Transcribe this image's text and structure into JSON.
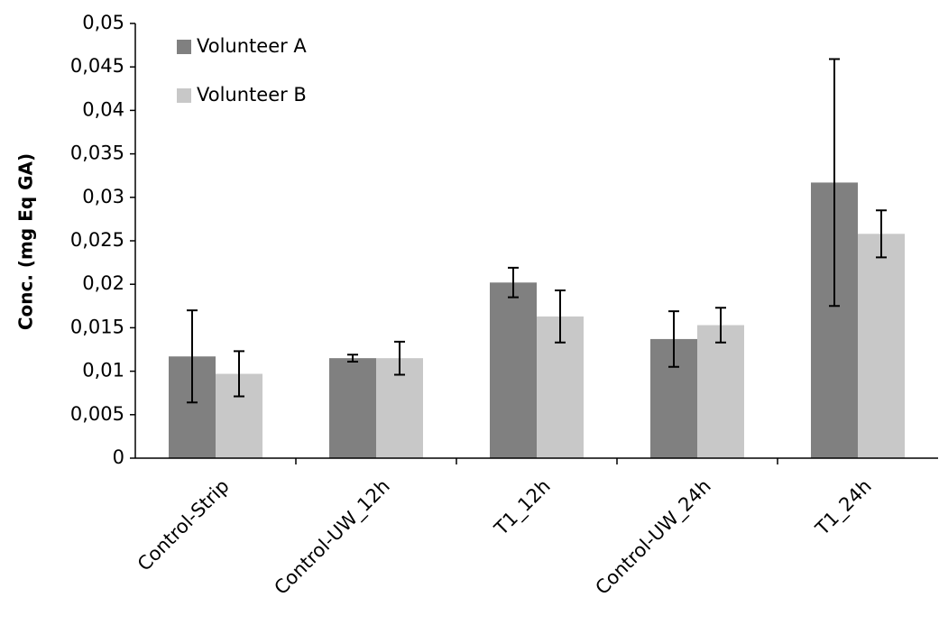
{
  "chart_data": {
    "type": "bar",
    "ylabel": "Conc. (mg Eq GA)",
    "categories": [
      "Control-Strip",
      "Control-UW_12h",
      "T1_12h",
      "Control-UW_24h",
      "T1_24h"
    ],
    "series": [
      {
        "name": "Volunteer A",
        "color": "#808080",
        "values": [
          0.0117,
          0.0115,
          0.0202,
          0.0137,
          0.0317
        ],
        "errors": [
          0.0053,
          0.0004,
          0.0017,
          0.0032,
          0.0142
        ]
      },
      {
        "name": "Volunteer B",
        "color": "#c8c8c8",
        "values": [
          0.0097,
          0.0115,
          0.0163,
          0.0153,
          0.0258
        ],
        "errors": [
          0.0026,
          0.0019,
          0.003,
          0.002,
          0.0027
        ]
      }
    ],
    "ylim": [
      0,
      0.05
    ],
    "yticks": [
      0,
      {
        "value": 0.005,
        "label": "0,005"
      },
      {
        "value": 0.01,
        "label": "0,01"
      },
      {
        "value": 0.015,
        "label": "0,015"
      },
      {
        "value": 0.02,
        "label": "0,02"
      },
      {
        "value": 0.025,
        "label": "0,025"
      },
      {
        "value": 0.03,
        "label": "0,03"
      },
      {
        "value": 0.035,
        "label": "0,035"
      },
      {
        "value": 0.04,
        "label": "0,04"
      },
      {
        "value": 0.045,
        "label": "0,045"
      },
      {
        "value": 0.05,
        "label": "0,05"
      }
    ],
    "legend": "top-left",
    "grid": false
  }
}
